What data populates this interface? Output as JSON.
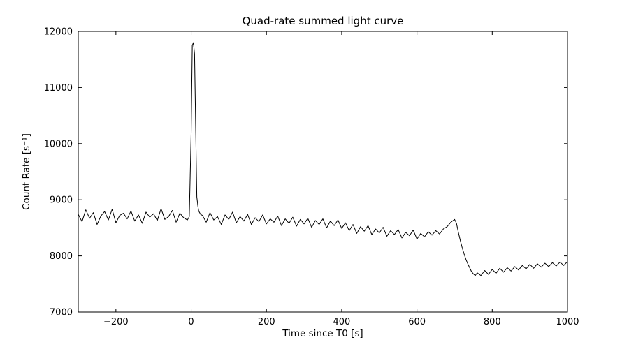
{
  "chart_data": {
    "type": "line",
    "title": "Quad-rate summed light curve",
    "xlabel": "Time since T0 [s]",
    "ylabel": "Count Rate [s⁻¹]",
    "xlim": [
      -300,
      1000
    ],
    "ylim": [
      7000,
      12000
    ],
    "xticks": [
      -200,
      0,
      200,
      400,
      600,
      800,
      1000
    ],
    "yticks": [
      7000,
      8000,
      9000,
      10000,
      11000,
      12000
    ],
    "grid": false,
    "legend_position": "none",
    "line_color": "#000000",
    "frame_color": "#000000",
    "background_color": "#ffffff",
    "series": [
      {
        "name": "summed light curve",
        "x": [
          -300,
          -290,
          -280,
          -270,
          -260,
          -250,
          -240,
          -230,
          -220,
          -210,
          -200,
          -190,
          -180,
          -170,
          -160,
          -150,
          -140,
          -130,
          -120,
          -110,
          -100,
          -90,
          -80,
          -70,
          -60,
          -50,
          -40,
          -30,
          -20,
          -10,
          -5,
          0,
          3,
          6,
          9,
          12,
          15,
          18,
          20,
          25,
          30,
          40,
          50,
          60,
          70,
          80,
          90,
          100,
          110,
          120,
          130,
          140,
          150,
          160,
          170,
          180,
          190,
          200,
          210,
          220,
          230,
          240,
          250,
          260,
          270,
          280,
          290,
          300,
          310,
          320,
          330,
          340,
          350,
          360,
          370,
          380,
          390,
          400,
          410,
          420,
          430,
          440,
          450,
          460,
          470,
          480,
          490,
          500,
          510,
          520,
          530,
          540,
          550,
          560,
          570,
          580,
          590,
          600,
          610,
          620,
          630,
          640,
          650,
          660,
          670,
          680,
          690,
          700,
          705,
          710,
          715,
          720,
          725,
          730,
          735,
          740,
          745,
          750,
          755,
          760,
          770,
          780,
          790,
          800,
          810,
          820,
          830,
          840,
          850,
          860,
          870,
          880,
          890,
          900,
          910,
          920,
          930,
          940,
          950,
          960,
          970,
          980,
          990,
          1000
        ],
        "y": [
          8740,
          8610,
          8820,
          8670,
          8770,
          8560,
          8710,
          8790,
          8640,
          8830,
          8590,
          8720,
          8760,
          8660,
          8800,
          8620,
          8730,
          8580,
          8780,
          8690,
          8750,
          8630,
          8840,
          8650,
          8700,
          8810,
          8600,
          8760,
          8680,
          8640,
          8700,
          10200,
          11750,
          11800,
          11600,
          10300,
          9050,
          8880,
          8800,
          8740,
          8720,
          8600,
          8770,
          8640,
          8700,
          8560,
          8730,
          8650,
          8780,
          8590,
          8700,
          8620,
          8740,
          8560,
          8680,
          8610,
          8730,
          8570,
          8660,
          8600,
          8710,
          8540,
          8660,
          8580,
          8690,
          8530,
          8650,
          8570,
          8670,
          8510,
          8630,
          8560,
          8660,
          8500,
          8620,
          8540,
          8640,
          8490,
          8590,
          8450,
          8560,
          8400,
          8520,
          8440,
          8540,
          8380,
          8480,
          8410,
          8510,
          8350,
          8450,
          8380,
          8470,
          8320,
          8420,
          8360,
          8460,
          8300,
          8400,
          8340,
          8430,
          8370,
          8450,
          8390,
          8480,
          8520,
          8600,
          8650,
          8580,
          8420,
          8280,
          8150,
          8040,
          7940,
          7860,
          7790,
          7720,
          7680,
          7650,
          7700,
          7650,
          7740,
          7670,
          7760,
          7690,
          7780,
          7710,
          7790,
          7730,
          7810,
          7750,
          7830,
          7770,
          7850,
          7780,
          7860,
          7800,
          7870,
          7810,
          7880,
          7820,
          7890,
          7830,
          7900
        ]
      }
    ]
  }
}
